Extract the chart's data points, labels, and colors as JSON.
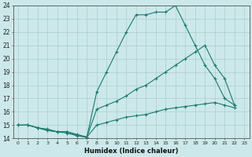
{
  "xlabel": "Humidex (Indice chaleur)",
  "ylabel": "",
  "bg_color": "#cce8ea",
  "grid_color": "#aacdd0",
  "line_color": "#1a7a6e",
  "xlim": [
    -0.5,
    23.5
  ],
  "ylim": [
    14,
    24
  ],
  "xtick_labels": [
    "0",
    "1",
    "2",
    "3",
    "4",
    "5",
    "6",
    "7",
    "8",
    "9",
    "10",
    "11",
    "12",
    "13",
    "14",
    "15",
    "16",
    "17",
    "18",
    "19",
    "20",
    "21",
    "22",
    "23"
  ],
  "ytick_labels": [
    "14",
    "15",
    "16",
    "17",
    "18",
    "19",
    "20",
    "21",
    "22",
    "23",
    "24"
  ],
  "series": [
    {
      "x": [
        0,
        1,
        2,
        3,
        4,
        5,
        6,
        7,
        8,
        9,
        10,
        11,
        12,
        13,
        14,
        15,
        16,
        17,
        18,
        19,
        20,
        21,
        22
      ],
      "y": [
        15,
        15,
        14.8,
        14.6,
        14.5,
        14.5,
        14.2,
        14.1,
        17.5,
        19,
        20.5,
        22,
        23.3,
        23.3,
        23.5,
        23.5,
        24.0,
        22.5,
        21.0,
        19.5,
        18.5,
        17,
        16.5
      ]
    },
    {
      "x": [
        0,
        1,
        2,
        3,
        4,
        5,
        6,
        7,
        8,
        9,
        10,
        11,
        12,
        13,
        14,
        15,
        16,
        17,
        18,
        19,
        20,
        21,
        22
      ],
      "y": [
        15,
        15,
        14.8,
        14.6,
        14.5,
        14.4,
        14.2,
        14.1,
        16.2,
        16.5,
        16.8,
        17.2,
        17.7,
        18.0,
        18.5,
        19.0,
        19.5,
        20.0,
        20.5,
        21.0,
        19.5,
        18.5,
        16.5
      ]
    },
    {
      "x": [
        0,
        1,
        2,
        3,
        4,
        5,
        6,
        7,
        8,
        9,
        10,
        11,
        12,
        13,
        14,
        15,
        16,
        17,
        18,
        19,
        20,
        21,
        22
      ],
      "y": [
        15,
        15,
        14.8,
        14.7,
        14.5,
        14.5,
        14.3,
        14.1,
        15.0,
        15.2,
        15.4,
        15.6,
        15.7,
        15.8,
        16.0,
        16.2,
        16.3,
        16.4,
        16.5,
        16.6,
        16.7,
        16.5,
        16.3
      ]
    }
  ]
}
